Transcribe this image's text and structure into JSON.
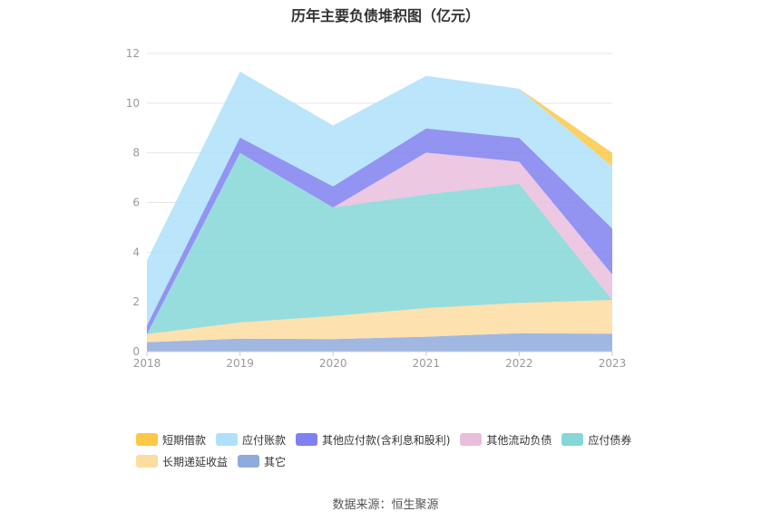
{
  "title": "历年主要负债堆积图（亿元）",
  "source": "数据来源：恒生聚源",
  "colors": {
    "grid": "#e6e6e6",
    "axis": "#cccccc"
  },
  "chart_data": {
    "type": "area",
    "stacked": true,
    "title": "历年主要负债堆积图（亿元）",
    "categories": [
      "2018",
      "2019",
      "2020",
      "2021",
      "2022",
      "2023"
    ],
    "ylim": [
      0,
      12
    ],
    "yticks": [
      "0",
      "2",
      "4",
      "6",
      "8",
      "10",
      "12"
    ],
    "grid": true,
    "legend_position": "bottom",
    "series": [
      {
        "name": "其它",
        "color": "#8faadc",
        "values": [
          0.38,
          0.52,
          0.5,
          0.6,
          0.74,
          0.72
        ]
      },
      {
        "name": "长期递延收益",
        "color": "#fddca0",
        "values": [
          0.32,
          0.65,
          0.93,
          1.15,
          1.22,
          1.36
        ]
      },
      {
        "name": "应付债券",
        "color": "#86d7d7",
        "values": [
          0,
          6.83,
          4.37,
          4.58,
          4.8,
          0
        ]
      },
      {
        "name": "其他流动负债",
        "color": "#e9bedd",
        "values": [
          0,
          0,
          0,
          1.68,
          0.88,
          1.02
        ]
      },
      {
        "name": "其他应付款(含利息和股利)",
        "color": "#8080f0",
        "values": [
          0.35,
          0.62,
          0.85,
          0.97,
          0.96,
          1.85
        ]
      },
      {
        "name": "应付账款",
        "color": "#aee1f9",
        "values": [
          2.62,
          2.65,
          2.45,
          2.12,
          1.98,
          2.5
        ]
      },
      {
        "name": "短期借款",
        "color": "#fcc845",
        "values": [
          0,
          0,
          0,
          0,
          0,
          0.55
        ]
      }
    ]
  },
  "legend": {
    "rows": [
      [
        "短期借款",
        "应付账款",
        "其他应付款(含利息和股利)",
        "其他流动负债",
        "应付债券"
      ],
      [
        "长期递延收益",
        "其它"
      ]
    ]
  }
}
